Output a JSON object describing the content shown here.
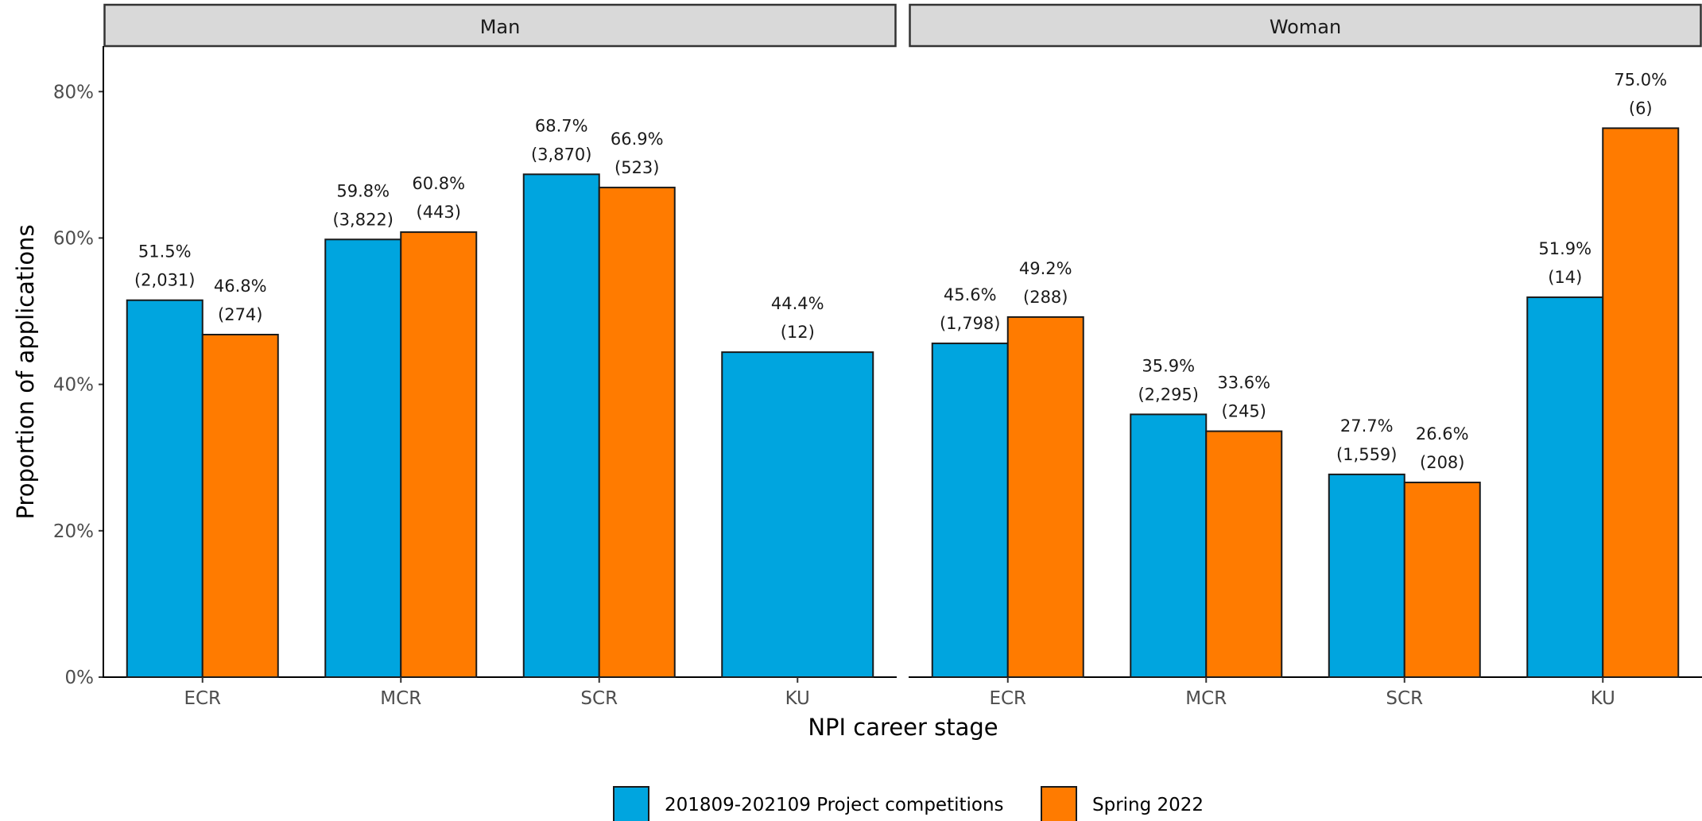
{
  "chart_data": {
    "type": "bar",
    "xlabel": "NPI career stage",
    "ylabel": "Proportion of applications",
    "ylim": [
      0,
      86
    ],
    "yticks": [
      0,
      20,
      40,
      60,
      80
    ],
    "ytick_labels": [
      "0%",
      "20%",
      "40%",
      "60%",
      "80%"
    ],
    "categories": [
      "ECR",
      "MCR",
      "SCR",
      "KU"
    ],
    "legend_position": "bottom",
    "series": [
      {
        "name": "201809-202109 Project competitions",
        "color": "#00a5df"
      },
      {
        "name": "Spring 2022",
        "color": "#ff7b00"
      }
    ],
    "facets": [
      {
        "label": "Man",
        "values": [
          [
            51.5,
            46.8
          ],
          [
            59.8,
            60.8
          ],
          [
            68.7,
            66.9
          ],
          [
            44.4,
            null
          ]
        ],
        "pct_labels": [
          [
            "51.5%",
            "46.8%"
          ],
          [
            "59.8%",
            "60.8%"
          ],
          [
            "68.7%",
            "66.9%"
          ],
          [
            "44.4%",
            null
          ]
        ],
        "count_labels": [
          [
            "(2,031)",
            "(274)"
          ],
          [
            "(3,822)",
            "(443)"
          ],
          [
            "(3,870)",
            "(523)"
          ],
          [
            "(12)",
            null
          ]
        ]
      },
      {
        "label": "Woman",
        "values": [
          [
            45.6,
            49.2
          ],
          [
            35.9,
            33.6
          ],
          [
            27.7,
            26.6
          ],
          [
            51.9,
            75.0
          ]
        ],
        "pct_labels": [
          [
            "45.6%",
            "49.2%"
          ],
          [
            "35.9%",
            "33.6%"
          ],
          [
            "27.7%",
            "26.6%"
          ],
          [
            "51.9%",
            "75.0%"
          ]
        ],
        "count_labels": [
          [
            "(1,798)",
            "(288)"
          ],
          [
            "(2,295)",
            "(245)"
          ],
          [
            "(1,559)",
            "(208)"
          ],
          [
            "(14)",
            "(6)"
          ]
        ]
      }
    ]
  }
}
